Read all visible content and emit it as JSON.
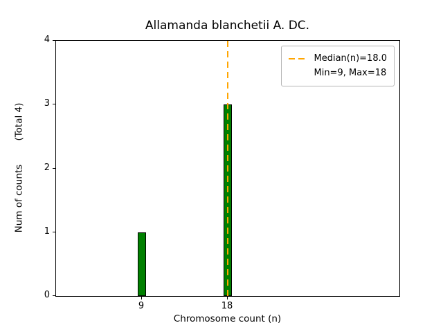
{
  "chart_data": {
    "type": "bar",
    "title": "Allamanda blanchetii A. DC.",
    "xlabel": "Chromosome count (n)",
    "ylabel": "Num of counts        (Total 4)",
    "categories": [
      9,
      18
    ],
    "values": [
      1,
      3
    ],
    "total_counts": 4,
    "bar_color": "#008000",
    "bar_edge_color": "#000000",
    "bar_width_units": 0.9,
    "xlim": [
      0,
      36
    ],
    "ylim": [
      0,
      4
    ],
    "xticks": [
      9,
      18
    ],
    "yticks": [
      0,
      1,
      2,
      3,
      4
    ],
    "grid": false,
    "median_line": {
      "x": 18,
      "value": 18.0,
      "color": "#ffa500",
      "style": "dashed"
    },
    "min": 9,
    "max": 18,
    "legend": {
      "position": "upper-right",
      "entries": [
        {
          "symbol": "dashed-line",
          "color": "#ffa500",
          "label": "Median(n)=18.0"
        },
        {
          "symbol": "none",
          "color": "",
          "label": "Min=9, Max=18"
        }
      ]
    }
  }
}
